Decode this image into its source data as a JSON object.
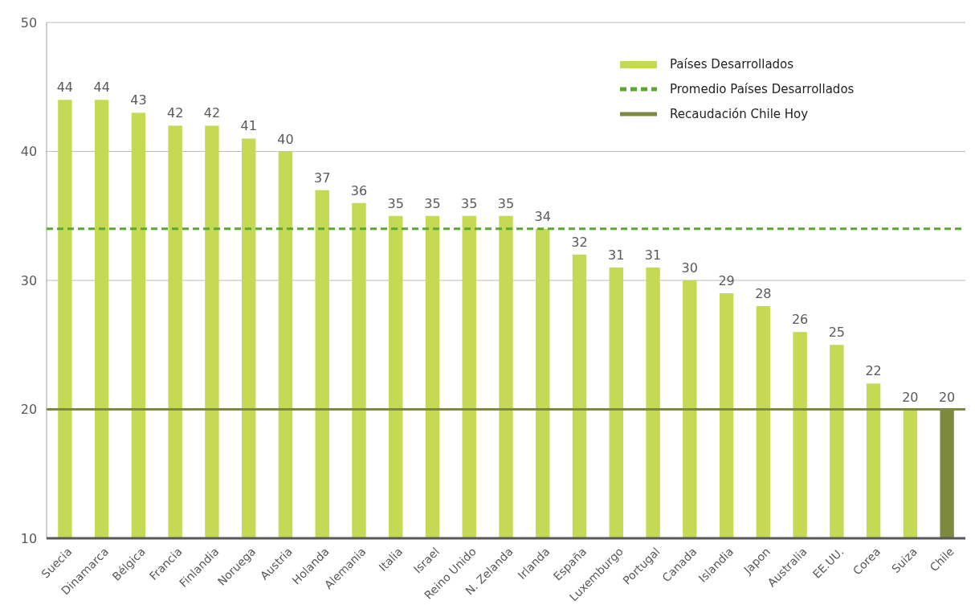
{
  "chart_data": {
    "type": "bar",
    "categories": [
      "Suecia",
      "Dinamarca",
      "Bélgica",
      "Francia",
      "Finlandia",
      "Noruega",
      "Austria",
      "Holanda",
      "Alemania",
      "Italia",
      "Israel",
      "Reino Unido",
      "N. Zelanda",
      "Irlanda",
      "España",
      "Luxemburgo",
      "Portugal",
      "Canada",
      "Islandia",
      "Japon",
      "Australia",
      "EE.UU.",
      "Corea",
      "Suiza",
      "Chile"
    ],
    "series": [
      {
        "name": "Países Desarrollados",
        "color": "#c5d955",
        "colors": [
          "#c5d955",
          "#c5d955",
          "#c5d955",
          "#c5d955",
          "#c5d955",
          "#c5d955",
          "#c5d955",
          "#c5d955",
          "#c5d955",
          "#c5d955",
          "#c5d955",
          "#c5d955",
          "#c5d955",
          "#c5d955",
          "#c5d955",
          "#c5d955",
          "#c5d955",
          "#c5d955",
          "#c5d955",
          "#c5d955",
          "#c5d955",
          "#c5d955",
          "#c5d955",
          "#c5d955",
          "#7b8a3e"
        ],
        "values": [
          44,
          44,
          43,
          42,
          42,
          41,
          40,
          37,
          36,
          35,
          35,
          35,
          35,
          34,
          32,
          31,
          31,
          30,
          29,
          28,
          26,
          25,
          22,
          20,
          20
        ]
      }
    ],
    "ylim": [
      10,
      50
    ],
    "yticks": [
      10,
      20,
      30,
      40,
      50
    ],
    "grid": "y",
    "data_labels": true,
    "legend": "top right",
    "ref_lines": [
      {
        "axis": "y",
        "value": 34,
        "label": "Promedio Países Desarrollados",
        "color": "#5aa832",
        "line_style": "dashed"
      },
      {
        "axis": "y",
        "value": 20,
        "label": "Recaudación Chile Hoy",
        "color": "#7b8a3e",
        "line_style": "solid"
      }
    ]
  }
}
